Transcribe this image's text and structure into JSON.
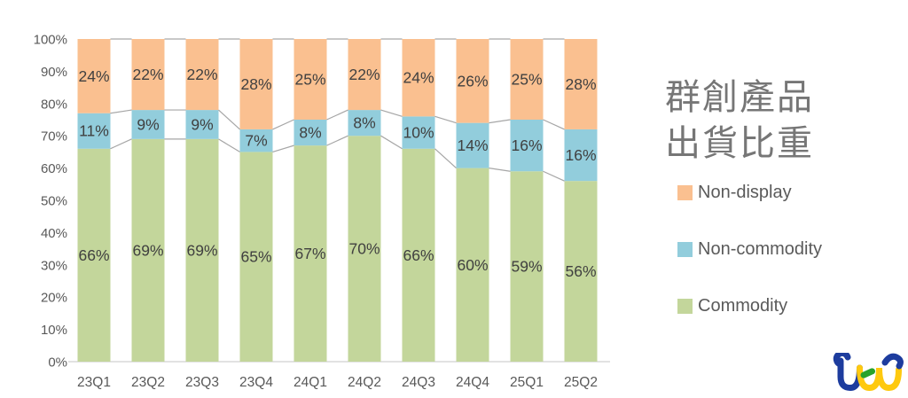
{
  "title": {
    "line1": "群創產品",
    "line2": "出貨比重"
  },
  "legend": {
    "position": "right",
    "items": [
      {
        "label": "Non-display",
        "color": "#FAC090"
      },
      {
        "label": "Non-commodity",
        "color": "#92CDDC"
      },
      {
        "label": "Commodity",
        "color": "#C3D69B"
      }
    ]
  },
  "chart_data": {
    "type": "bar",
    "stacked": true,
    "percent_stacked": true,
    "unit": "%",
    "grid": false,
    "legend_position": "right",
    "categories": [
      "23Q1",
      "23Q2",
      "23Q3",
      "23Q4",
      "24Q1",
      "24Q2",
      "24Q3",
      "24Q4",
      "25Q1",
      "25Q2"
    ],
    "series": [
      {
        "name": "Commodity",
        "color": "#C3D69B",
        "values": [
          66,
          69,
          69,
          65,
          67,
          70,
          66,
          60,
          59,
          56
        ]
      },
      {
        "name": "Non-commodity",
        "color": "#92CDDC",
        "values": [
          11,
          9,
          9,
          7,
          8,
          8,
          10,
          14,
          16,
          16
        ]
      },
      {
        "name": "Non-display",
        "color": "#FAC090",
        "values": [
          24,
          22,
          22,
          28,
          25,
          22,
          24,
          26,
          25,
          28
        ]
      }
    ],
    "y_ticks": [
      "0%",
      "10%",
      "20%",
      "30%",
      "40%",
      "50%",
      "60%",
      "70%",
      "80%",
      "90%",
      "100%"
    ],
    "ylim": [
      0,
      100
    ],
    "connector_lines": true,
    "connector_color": "#A6A6A6",
    "axis_color": "#D9D9D9",
    "tick_color": "#595959",
    "label_color": "#404040"
  },
  "logo": {
    "brand": "tej",
    "blue": "#1d3c9e",
    "yellow": "#fec90f",
    "green": "#27a22b"
  }
}
